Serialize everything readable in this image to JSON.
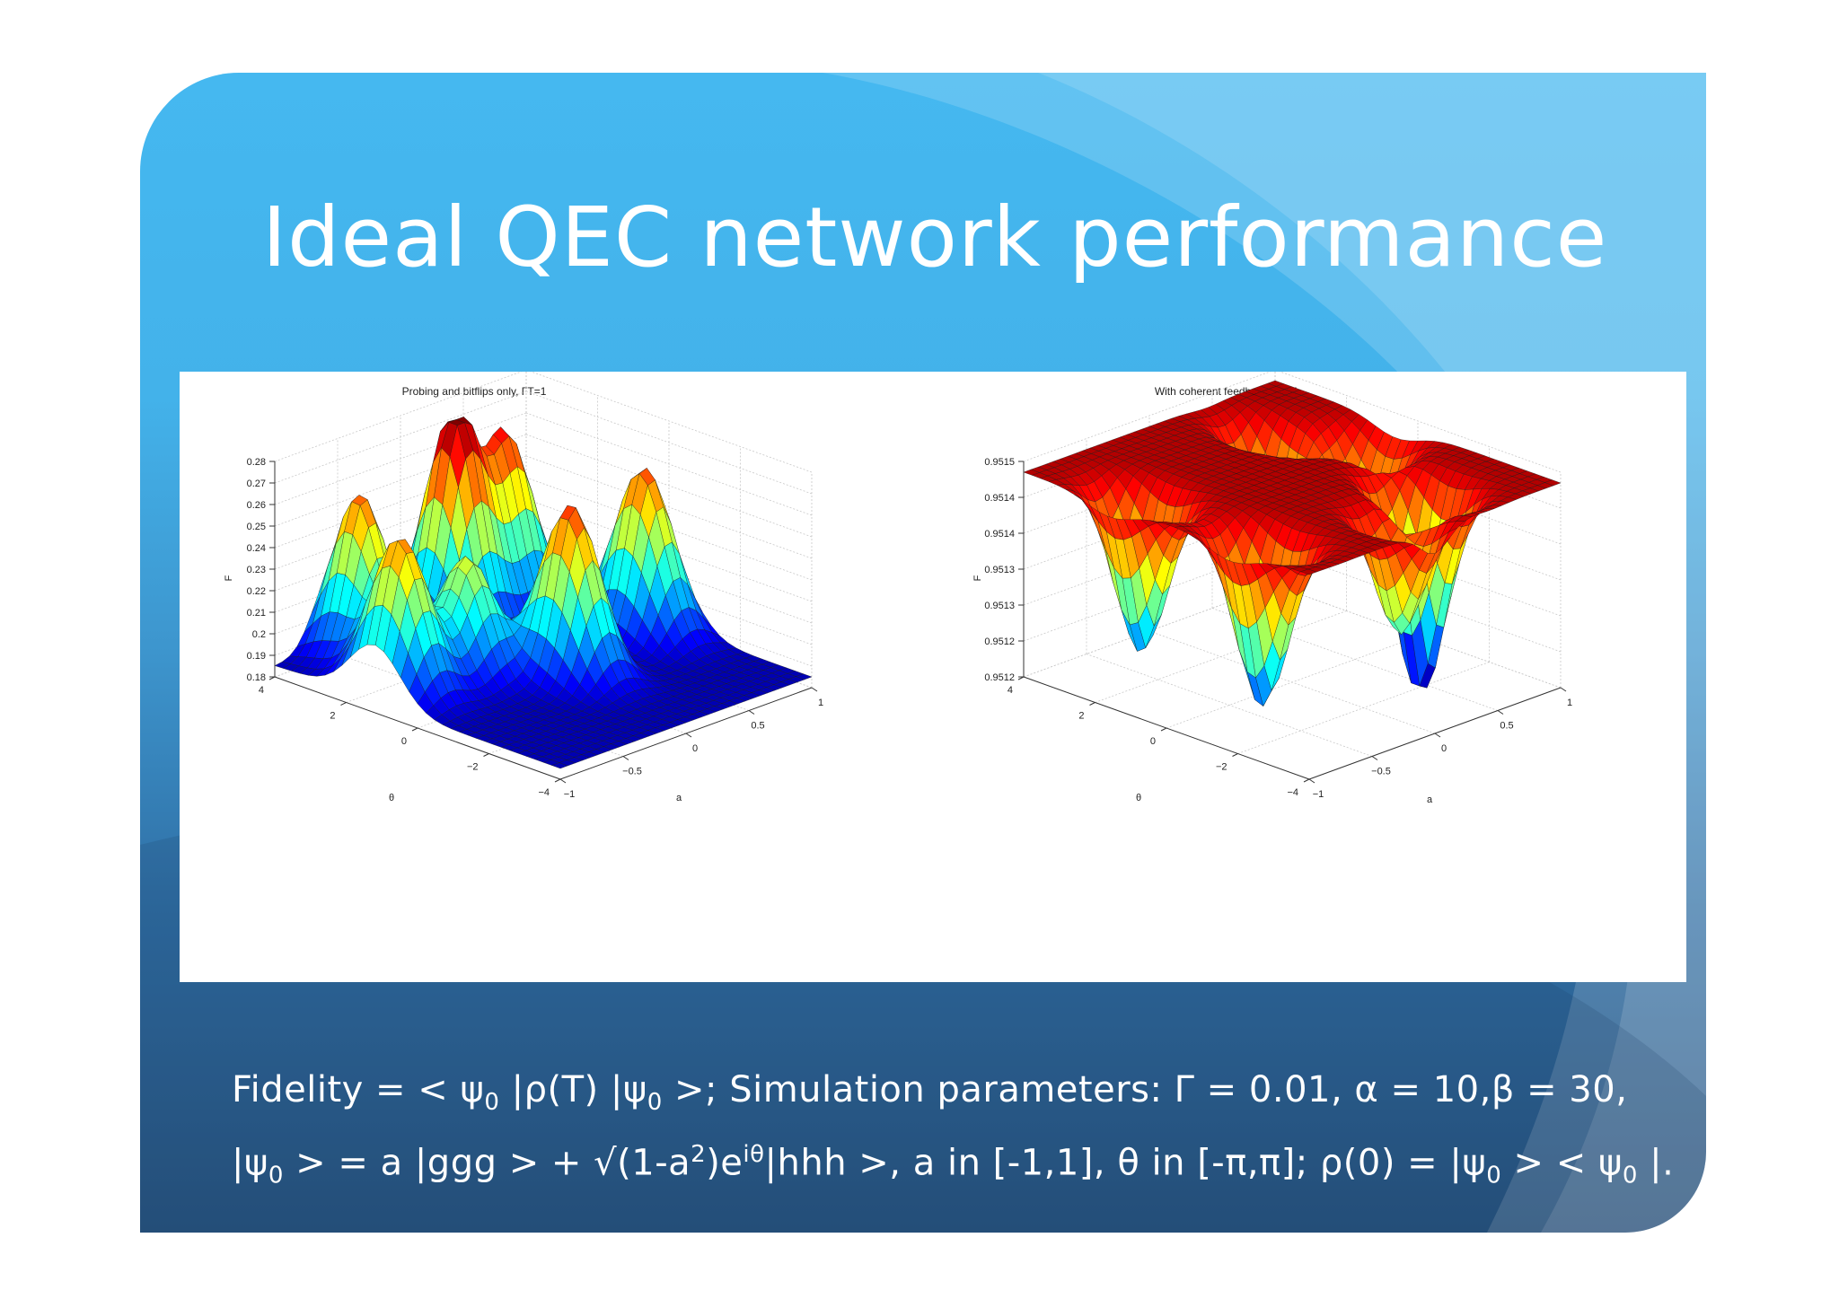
{
  "slide": {
    "title": "Ideal QEC network performance",
    "colors": {
      "gradient_top": "#45b8f0",
      "gradient_bottom": "#27527d",
      "text": "#ffffff"
    }
  },
  "chart_data": [
    {
      "type": "surface",
      "title": "Probing and bitflips only, ΓT=1",
      "xlabel": "a",
      "ylabel": "θ",
      "zlabel": "F",
      "xlim": [
        -1,
        1
      ],
      "ylim": [
        -4,
        4
      ],
      "zlim": [
        0.18,
        0.28
      ],
      "x_ticks": [
        "−1",
        "−0.5",
        "0",
        "0.5",
        "1"
      ],
      "y_ticks": [
        "−4",
        "−2",
        "0",
        "2",
        "4"
      ],
      "z_ticks": [
        "0.18",
        "0.19",
        "0.2",
        "0.21",
        "0.22",
        "0.23",
        "0.24",
        "0.25",
        "0.26",
        "0.27",
        "0.28"
      ],
      "colormap": "jet",
      "grid": true
    },
    {
      "type": "surface",
      "title": "With coherent feedback, ΓT=1",
      "xlabel": "a",
      "ylabel": "θ",
      "zlabel": "F",
      "xlim": [
        -1,
        1
      ],
      "ylim": [
        -4,
        4
      ],
      "zlim": [
        0.9512,
        0.9515
      ],
      "x_ticks": [
        "−1",
        "−0.5",
        "0",
        "0.5",
        "1"
      ],
      "y_ticks": [
        "−4",
        "−2",
        "0",
        "2",
        "4"
      ],
      "z_ticks": [
        "0.9512",
        "0.9512",
        "0.9513",
        "0.9513",
        "0.9514",
        "0.9514",
        "0.9515"
      ],
      "colormap": "jet",
      "grid": true
    }
  ],
  "caption": {
    "line1": {
      "p1": "Fidelity = < ψ",
      "s1": "0",
      "p2": " |ρ(T) |ψ",
      "s2": "0",
      "p3": " >;  Simulation parameters: Γ = 0.01, α = 10,β = 30,"
    },
    "line2": {
      "p1": "|ψ",
      "s1": "0",
      "p2": " > = a |ggg > + √(1-a",
      "sup1": "2",
      "p3": ")e",
      "sup2": "iθ",
      "p4": "|hhh >, a in [-1,1], θ in [-π,π]; ρ(0) = |ψ",
      "s2": "0",
      "p5": " > < ψ",
      "s3": "0",
      "p6": " |."
    }
  }
}
